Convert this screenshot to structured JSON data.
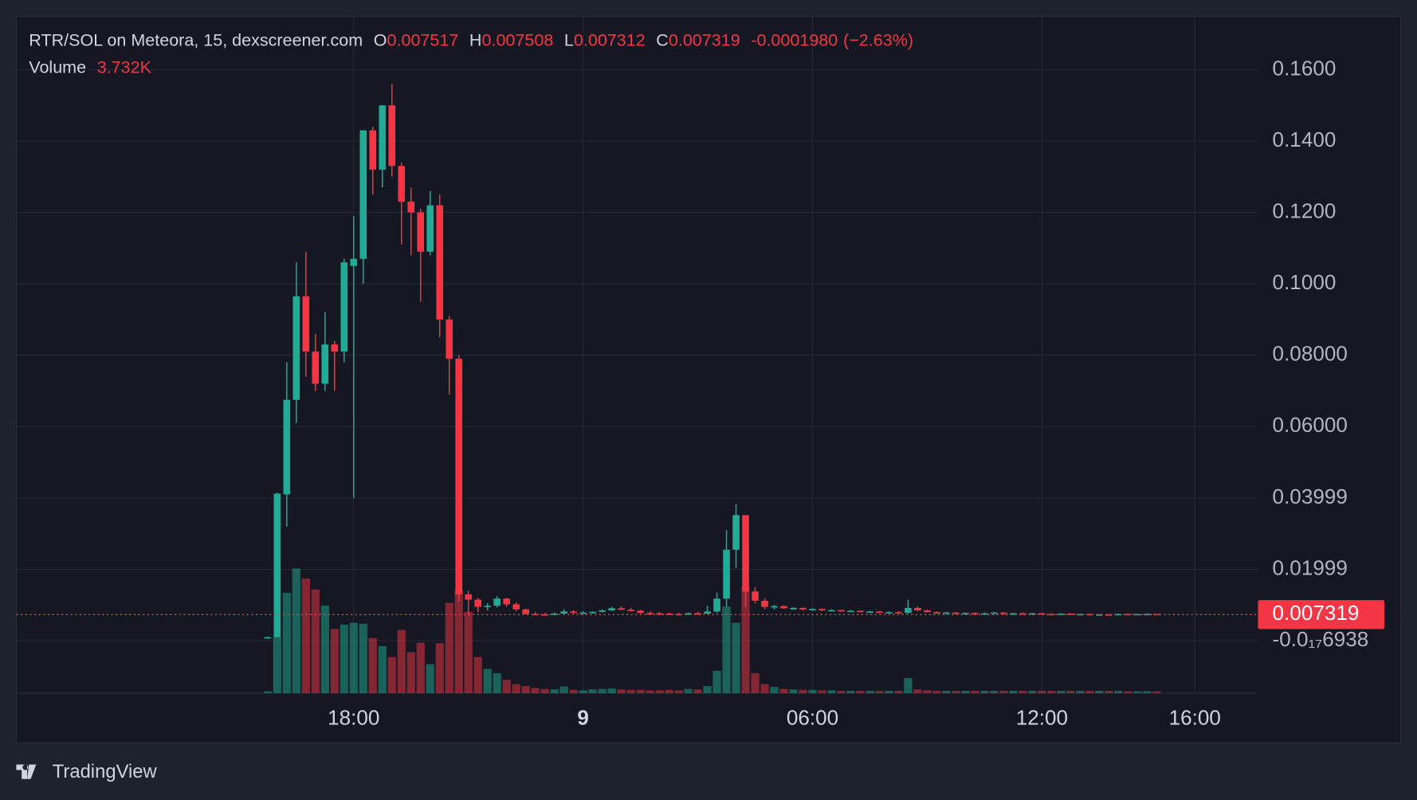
{
  "header": {
    "symbol": "RTR/SOL on Meteora, 15, dexscreener.com",
    "o": "O",
    "h": "H",
    "l": "L",
    "c": "C",
    "change": "-0.0001980",
    "change_pct": "(−2.63%)",
    "volume_title": "Volume",
    "volume_value": "3.732K"
  },
  "branding": "TradingView",
  "chart_data": {
    "type": "candlestick",
    "up_color": "#22ab94",
    "down_color": "#f23645",
    "grid": true,
    "ylim": [
      -0.0147,
      0.1749
    ],
    "yticks": [
      {
        "value": 0.16,
        "label": "0.1600"
      },
      {
        "value": 0.14,
        "label": "0.1400"
      },
      {
        "value": 0.12,
        "label": "0.1200"
      },
      {
        "value": 0.1,
        "label": "0.1000"
      },
      {
        "value": 0.08,
        "label": "0.08000"
      },
      {
        "value": 0.06,
        "label": "0.06000"
      },
      0.03999,
      0.01999,
      {
        "value": -6.938e-18,
        "label": "-0.0₁₇6938"
      }
    ],
    "xlim": [
      -26.3,
      103.6
    ],
    "xticks": [
      {
        "value": 9,
        "label": "18:00"
      },
      {
        "value": 33,
        "label": "9"
      },
      {
        "value": 57,
        "label": "06:00"
      },
      {
        "value": 81,
        "label": "12:00"
      },
      {
        "value": 97,
        "label": "16:00"
      }
    ],
    "open": [
      0.0009,
      0.001,
      0.041,
      0.0675,
      0.0965,
      0.081,
      0.072,
      0.083,
      0.081,
      0.105,
      0.107,
      0.143,
      0.132,
      0.15,
      0.133,
      0.123,
      0.12,
      0.109,
      0.122,
      0.09,
      0.079,
      0.013,
      0.0115,
      0.0095,
      0.0098,
      0.0118,
      0.0102,
      0.0088,
      0.0075,
      0.0074,
      0.0073,
      0.0076,
      0.0082,
      0.0078,
      0.0079,
      0.0081,
      0.0085,
      0.0091,
      0.0087,
      0.0084,
      0.0078,
      0.0077,
      0.0076,
      0.0075,
      0.0073,
      0.0077,
      0.0076,
      0.0082,
      0.0118,
      0.0255,
      0.0352,
      0.0138,
      0.0112,
      0.0095,
      0.0097,
      0.0091,
      0.0092,
      0.0088,
      0.0089,
      0.0085,
      0.0086,
      0.0083,
      0.0084,
      0.0081,
      0.0082,
      0.0079,
      0.008,
      0.0078,
      0.0092,
      0.0085,
      0.008,
      0.0078,
      0.0079,
      0.0076,
      0.0078,
      0.0075,
      0.0077,
      0.0079,
      0.0076,
      0.0077,
      0.0074,
      0.0077,
      0.0075,
      0.0074,
      0.0076,
      0.0073,
      0.0075,
      0.0072,
      0.0074,
      0.0072,
      0.0075,
      0.0073,
      0.0075,
      0.007517
    ],
    "high": [
      0.0011,
      0.0415,
      0.078,
      0.106,
      0.109,
      0.086,
      0.092,
      0.084,
      0.107,
      0.119,
      0.143,
      0.144,
      0.15,
      0.156,
      0.134,
      0.127,
      0.121,
      0.126,
      0.125,
      0.091,
      0.08,
      0.014,
      0.012,
      0.0105,
      0.0125,
      0.012,
      0.0108,
      0.009,
      0.008,
      0.0078,
      0.0079,
      0.0088,
      0.0085,
      0.0083,
      0.0082,
      0.0088,
      0.0095,
      0.0096,
      0.0092,
      0.0087,
      0.0082,
      0.008,
      0.0079,
      0.0078,
      0.0079,
      0.0081,
      0.0098,
      0.0135,
      0.031,
      0.0382,
      0.0352,
      0.015,
      0.0118,
      0.0101,
      0.0099,
      0.0094,
      0.0093,
      0.0091,
      0.009,
      0.0088,
      0.0087,
      0.0086,
      0.0085,
      0.0084,
      0.0083,
      0.0082,
      0.0083,
      0.0115,
      0.0095,
      0.0087,
      0.0082,
      0.0081,
      0.008,
      0.0079,
      0.0079,
      0.0079,
      0.0081,
      0.008,
      0.0078,
      0.0079,
      0.0078,
      0.0078,
      0.0077,
      0.0077,
      0.0077,
      0.0076,
      0.0076,
      0.0075,
      0.0075,
      0.0076,
      0.0077,
      0.0076,
      0.0077,
      0.007508
    ],
    "low": [
      0.0008,
      0.001,
      0.032,
      0.061,
      0.074,
      0.07,
      0.07,
      0.07,
      0.078,
      0.04,
      0.1,
      0.125,
      0.127,
      0.13,
      0.111,
      0.108,
      0.095,
      0.108,
      0.085,
      0.069,
      0.011,
      0.0075,
      0.008,
      0.0085,
      0.0093,
      0.0095,
      0.0083,
      0.0074,
      0.0072,
      0.0071,
      0.0072,
      0.0074,
      0.0076,
      0.0075,
      0.0076,
      0.0079,
      0.0083,
      0.0085,
      0.0082,
      0.0076,
      0.0074,
      0.0073,
      0.0072,
      0.0071,
      0.0072,
      0.0074,
      0.0074,
      0.0078,
      0.0095,
      0.0205,
      0.0095,
      0.0105,
      0.0088,
      0.0088,
      0.0089,
      0.0086,
      0.0085,
      0.0084,
      0.0083,
      0.0082,
      0.0081,
      0.008,
      0.0079,
      0.0078,
      0.0077,
      0.0076,
      0.0077,
      0.0076,
      0.0082,
      0.0079,
      0.0076,
      0.0075,
      0.0074,
      0.0073,
      0.0074,
      0.0073,
      0.0075,
      0.0074,
      0.0073,
      0.0073,
      0.0072,
      0.0073,
      0.0072,
      0.0072,
      0.0072,
      0.0071,
      0.0071,
      0.0071,
      0.0071,
      0.0071,
      0.0072,
      0.0072,
      0.0073,
      0.007312
    ],
    "close": [
      0.001,
      0.0412,
      0.0675,
      0.0965,
      0.081,
      0.072,
      0.083,
      0.081,
      0.106,
      0.107,
      0.143,
      0.132,
      0.15,
      0.133,
      0.123,
      0.12,
      0.109,
      0.122,
      0.09,
      0.079,
      0.013,
      0.0115,
      0.0095,
      0.0098,
      0.0118,
      0.0102,
      0.0088,
      0.0075,
      0.0074,
      0.0073,
      0.0076,
      0.0082,
      0.0078,
      0.0079,
      0.0081,
      0.0085,
      0.0091,
      0.0087,
      0.0084,
      0.0078,
      0.0077,
      0.0076,
      0.0075,
      0.0073,
      0.0077,
      0.0076,
      0.0082,
      0.0118,
      0.0255,
      0.0352,
      0.0138,
      0.0112,
      0.0095,
      0.0097,
      0.0091,
      0.0092,
      0.0088,
      0.0089,
      0.0085,
      0.0086,
      0.0083,
      0.0084,
      0.0081,
      0.0082,
      0.0079,
      0.008,
      0.0078,
      0.0092,
      0.0085,
      0.008,
      0.0078,
      0.0079,
      0.0076,
      0.0078,
      0.0075,
      0.0077,
      0.0079,
      0.0076,
      0.0077,
      0.0074,
      0.0077,
      0.0075,
      0.0074,
      0.0076,
      0.0073,
      0.0075,
      0.0072,
      0.0074,
      0.0072,
      0.0075,
      0.0073,
      0.0075,
      0.007517,
      0.007319
    ],
    "volume": [
      3800,
      118000,
      211000,
      262000,
      241000,
      218000,
      184000,
      135000,
      144000,
      148000,
      146000,
      116000,
      99000,
      76000,
      133000,
      86000,
      106000,
      61000,
      105000,
      190000,
      218000,
      171000,
      76000,
      51000,
      42000,
      28000,
      19000,
      15000,
      11000,
      9000,
      8000,
      14000,
      7000,
      6000,
      8000,
      9000,
      10000,
      8000,
      7000,
      7000,
      6000,
      6000,
      7000,
      6000,
      9000,
      8000,
      15000,
      47000,
      182000,
      148000,
      224000,
      42000,
      19000,
      13000,
      9000,
      8000,
      7000,
      7000,
      6000,
      6000,
      5000,
      5000,
      5000,
      5000,
      5000,
      5000,
      5000,
      32000,
      8000,
      6000,
      5000,
      5000,
      5000,
      5000,
      5000,
      5000,
      5000,
      5000,
      5000,
      5000,
      5000,
      5000,
      5000,
      5000,
      5000,
      5000,
      5000,
      5000,
      5000,
      5000,
      4000,
      4000,
      4000,
      3732
    ]
  }
}
